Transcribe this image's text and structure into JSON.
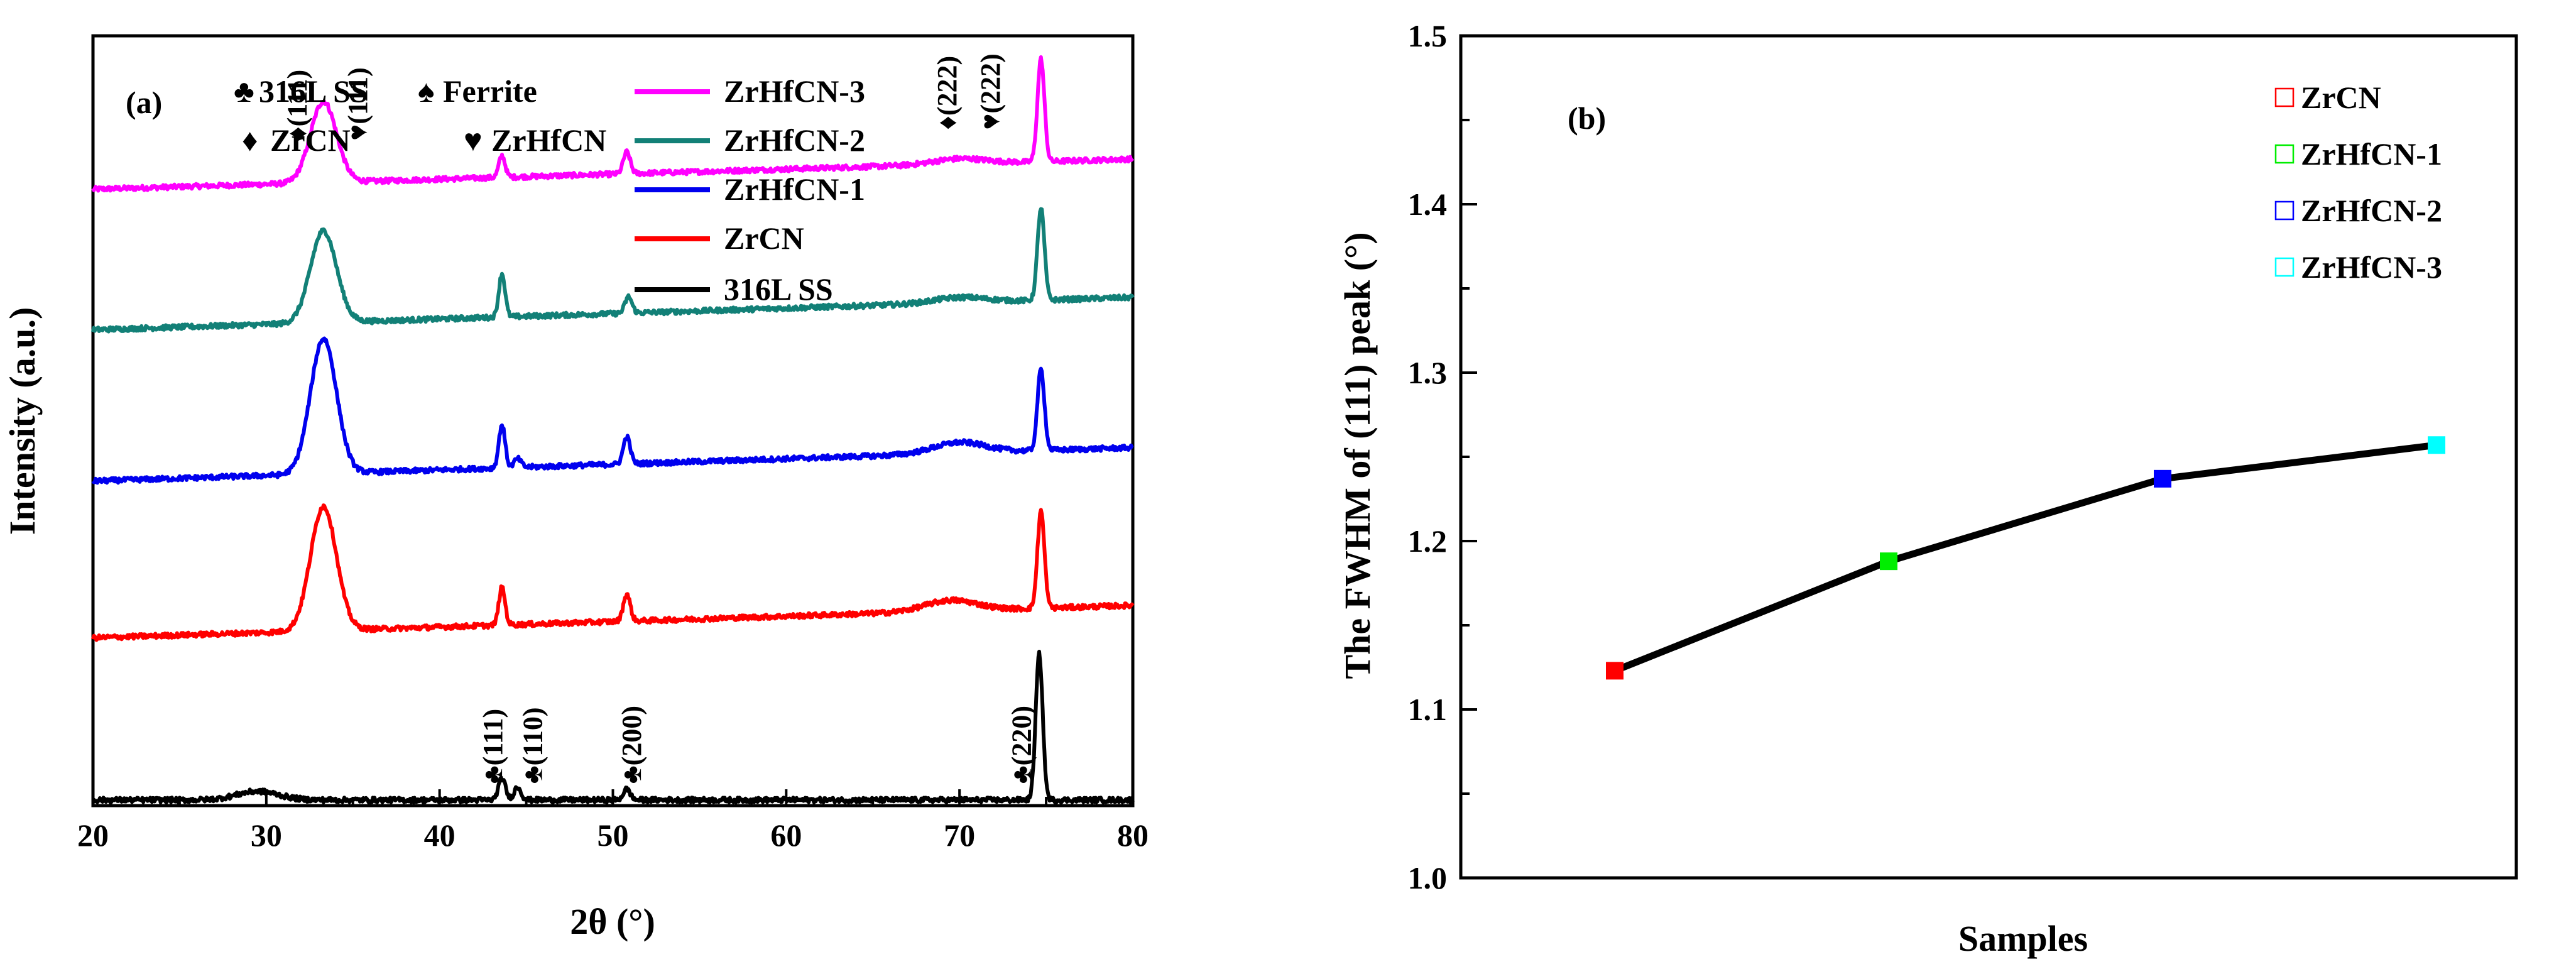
{
  "chart_data": [
    {
      "type": "line",
      "panel_label": "(a)",
      "xlabel": "2θ (°)",
      "ylabel": "Intensity (a.u.)",
      "xlim": [
        20,
        80
      ],
      "x_ticks": [
        "20",
        "30",
        "40",
        "50",
        "60",
        "70",
        "80"
      ],
      "y_ticks_labeled": false,
      "phase_legend": [
        {
          "symbol": "♣",
          "label": "316L SS"
        },
        {
          "symbol": "♠",
          "label": "Ferrite"
        },
        {
          "symbol": "♦",
          "label": "ZrCN"
        },
        {
          "symbol": "♥",
          "label": "ZrHfCN"
        }
      ],
      "series": [
        {
          "name": "ZrHfCN-3",
          "color": "#ff00ff",
          "baseline_start": 0.565,
          "baseline_end": 0.593,
          "peaks": [
            {
              "x": 33.3,
              "height": 0.075,
              "width": 0.75
            },
            {
              "x": 43.6,
              "height": 0.02,
              "width": 0.18
            },
            {
              "x": 50.8,
              "height": 0.02,
              "width": 0.2
            },
            {
              "x": 70.0,
              "height": 0.005,
              "width": 1.5
            },
            {
              "x": 74.7,
              "height": 0.095,
              "width": 0.2
            }
          ]
        },
        {
          "name": "ZrHfCN-2",
          "color": "#128077",
          "baseline_start": 0.435,
          "baseline_end": 0.465,
          "peaks": [
            {
              "x": 33.3,
              "height": 0.085,
              "width": 0.75
            },
            {
              "x": 43.6,
              "height": 0.04,
              "width": 0.18
            },
            {
              "x": 50.9,
              "height": 0.015,
              "width": 0.2
            },
            {
              "x": 70.0,
              "height": 0.005,
              "width": 1.5
            },
            {
              "x": 74.7,
              "height": 0.085,
              "width": 0.2
            }
          ]
        },
        {
          "name": "ZrHfCN-1",
          "color": "#0000ee",
          "baseline_start": 0.295,
          "baseline_end": 0.326,
          "peaks": [
            {
              "x": 33.3,
              "height": 0.125,
              "width": 0.75
            },
            {
              "x": 43.6,
              "height": 0.04,
              "width": 0.18
            },
            {
              "x": 44.5,
              "height": 0.008,
              "width": 0.2
            },
            {
              "x": 50.8,
              "height": 0.025,
              "width": 0.2
            },
            {
              "x": 70.0,
              "height": 0.01,
              "width": 1.5
            },
            {
              "x": 74.7,
              "height": 0.075,
              "width": 0.2
            }
          ]
        },
        {
          "name": "ZrCN",
          "color": "#ff0000",
          "baseline_start": 0.15,
          "baseline_end": 0.18,
          "peaks": [
            {
              "x": 33.3,
              "height": 0.115,
              "width": 0.75
            },
            {
              "x": 43.6,
              "height": 0.035,
              "width": 0.18
            },
            {
              "x": 50.8,
              "height": 0.025,
              "width": 0.2
            },
            {
              "x": 69.5,
              "height": 0.01,
              "width": 1.5
            },
            {
              "x": 74.7,
              "height": 0.09,
              "width": 0.2
            }
          ]
        },
        {
          "name": "316L SS",
          "color": "#000000",
          "baseline_start": 0.0,
          "baseline_end": 0.0,
          "peaks": [
            {
              "x": 29.5,
              "height": 0.008,
              "width": 1.2
            },
            {
              "x": 43.6,
              "height": 0.02,
              "width": 0.2
            },
            {
              "x": 44.5,
              "height": 0.012,
              "width": 0.2
            },
            {
              "x": 50.8,
              "height": 0.01,
              "width": 0.2
            },
            {
              "x": 74.6,
              "height": 0.135,
              "width": 0.2
            }
          ]
        }
      ],
      "peak_annotations": [
        {
          "symbol": "♦",
          "text": "(111)",
          "x": 31.8,
          "y": 0.61
        },
        {
          "symbol": "♥",
          "text": "(111)",
          "x": 35.3,
          "y": 0.61
        },
        {
          "symbol": "♦",
          "text": "(222)",
          "x": 69.3,
          "y": 0.62
        },
        {
          "symbol": "♥",
          "text": "(222)",
          "x": 71.8,
          "y": 0.62
        },
        {
          "symbol": "♣",
          "text": "(111)",
          "x": 43.1,
          "y": 0.015
        },
        {
          "symbol": "♣",
          "text": "(110)",
          "x": 45.4,
          "y": 0.015
        },
        {
          "symbol": "♣",
          "text": "(200)",
          "x": 51.1,
          "y": 0.015
        },
        {
          "symbol": "♣",
          "text": "(220)",
          "x": 73.6,
          "y": 0.015
        }
      ]
    },
    {
      "type": "line",
      "panel_label": "(b)",
      "xlabel": "Samples",
      "ylabel": "The FWHM of (111) peak (°)",
      "ylim": [
        1.0,
        1.5
      ],
      "y_ticks": [
        "1.0",
        "1.1",
        "1.2",
        "1.3",
        "1.4",
        "1.5"
      ],
      "x_ticks_labeled": false,
      "categories": [
        "ZrCN",
        "ZrHfCN-1",
        "ZrHfCN-2",
        "ZrHfCN-3"
      ],
      "values": [
        1.123,
        1.188,
        1.237,
        1.257
      ],
      "marker_colors": [
        "#ff0000",
        "#00ee00",
        "#0000ff",
        "#00ffff"
      ],
      "line_color": "#000000",
      "legend": [
        {
          "label": "ZrCN",
          "color": "#ff0000"
        },
        {
          "label": "ZrHfCN-1",
          "color": "#00ee00"
        },
        {
          "label": "ZrHfCN-2",
          "color": "#0000ff"
        },
        {
          "label": "ZrHfCN-3",
          "color": "#00ffff"
        }
      ]
    }
  ]
}
